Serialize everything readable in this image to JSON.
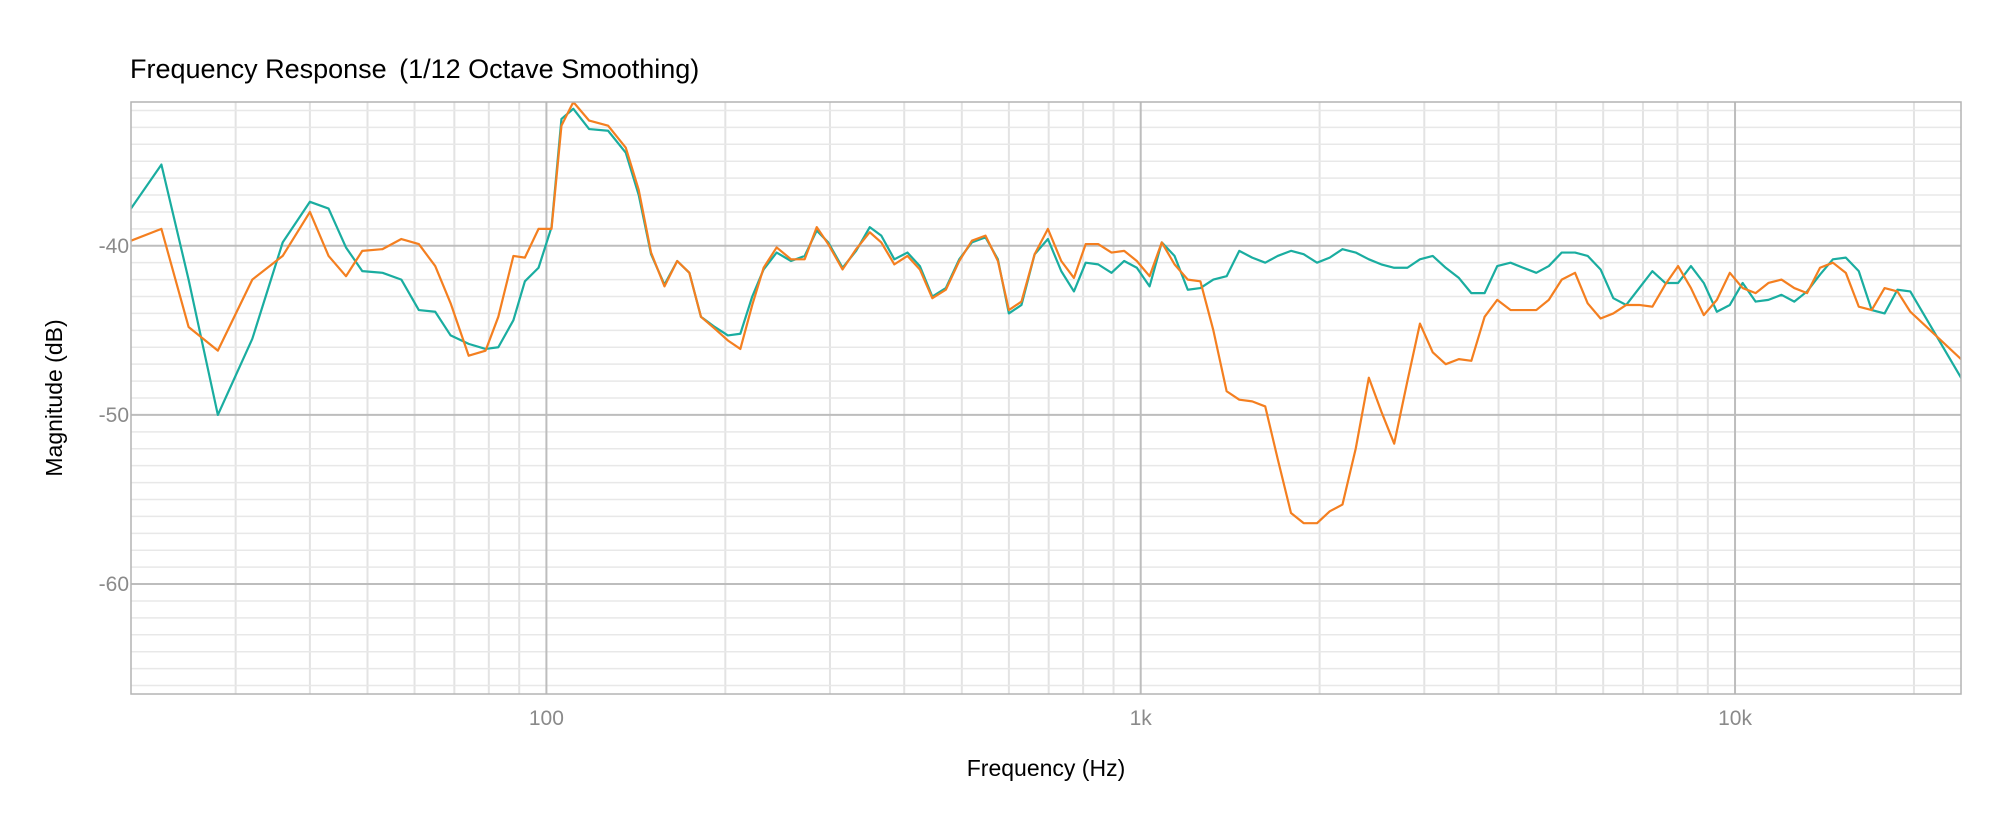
{
  "chart_data": {
    "type": "line",
    "title": "Frequency Response",
    "subtitle": "(1/12 Octave Smoothing)",
    "xlabel": "Frequency (Hz)",
    "ylabel": "Magnitude (dB)",
    "x_scale": "log",
    "xlim": [
      20,
      24000
    ],
    "ylim": [
      -66.5,
      -31.5
    ],
    "x_ticks": [
      {
        "value": 100,
        "label": "100"
      },
      {
        "value": 1000,
        "label": "1k"
      },
      {
        "value": 10000,
        "label": "10k"
      }
    ],
    "y_ticks": [
      {
        "value": -40,
        "label": "-40"
      },
      {
        "value": -50,
        "label": "-50"
      },
      {
        "value": -60,
        "label": "-60"
      }
    ],
    "grid": true,
    "legend": "none",
    "series": [
      {
        "color": "#1aada0",
        "points": [
          [
            20,
            -37.8
          ],
          [
            22.5,
            -35.2
          ],
          [
            25,
            -42.0
          ],
          [
            28,
            -50.0
          ],
          [
            32,
            -45.5
          ],
          [
            36,
            -39.8
          ],
          [
            40,
            -37.4
          ],
          [
            43,
            -37.8
          ],
          [
            46,
            -40.1
          ],
          [
            49,
            -41.5
          ],
          [
            53,
            -41.6
          ],
          [
            57,
            -42.0
          ],
          [
            61,
            -43.8
          ],
          [
            65,
            -43.9
          ],
          [
            69,
            -45.3
          ],
          [
            74,
            -45.8
          ],
          [
            79,
            -46.1
          ],
          [
            83,
            -46.0
          ],
          [
            88,
            -44.4
          ],
          [
            92,
            -42.1
          ],
          [
            97,
            -41.3
          ],
          [
            102,
            -38.9
          ],
          [
            106,
            -32.5
          ],
          [
            111,
            -31.9
          ],
          [
            118,
            -33.1
          ],
          [
            127,
            -33.2
          ],
          [
            136,
            -34.5
          ],
          [
            143,
            -37.0
          ],
          [
            150,
            -40.5
          ],
          [
            158,
            -42.3
          ],
          [
            166,
            -40.9
          ],
          [
            174,
            -41.6
          ],
          [
            182,
            -44.2
          ],
          [
            192,
            -44.8
          ],
          [
            202,
            -45.3
          ],
          [
            212,
            -45.2
          ],
          [
            222,
            -43.0
          ],
          [
            232,
            -41.4
          ],
          [
            244,
            -40.4
          ],
          [
            258,
            -40.9
          ],
          [
            272,
            -40.6
          ],
          [
            285,
            -39.1
          ],
          [
            298,
            -39.8
          ],
          [
            315,
            -41.3
          ],
          [
            332,
            -40.3
          ],
          [
            350,
            -38.9
          ],
          [
            366,
            -39.4
          ],
          [
            385,
            -40.8
          ],
          [
            405,
            -40.4
          ],
          [
            425,
            -41.2
          ],
          [
            446,
            -43.0
          ],
          [
            470,
            -42.5
          ],
          [
            495,
            -40.8
          ],
          [
            520,
            -39.8
          ],
          [
            548,
            -39.5
          ],
          [
            575,
            -40.8
          ],
          [
            600,
            -44.0
          ],
          [
            630,
            -43.5
          ],
          [
            663,
            -40.5
          ],
          [
            698,
            -39.6
          ],
          [
            735,
            -41.5
          ],
          [
            772,
            -42.7
          ],
          [
            808,
            -41.0
          ],
          [
            848,
            -41.1
          ],
          [
            893,
            -41.6
          ],
          [
            938,
            -40.9
          ],
          [
            985,
            -41.3
          ],
          [
            1035,
            -42.4
          ],
          [
            1085,
            -39.8
          ],
          [
            1140,
            -40.6
          ],
          [
            1200,
            -42.6
          ],
          [
            1260,
            -42.5
          ],
          [
            1325,
            -42.0
          ],
          [
            1395,
            -41.8
          ],
          [
            1465,
            -40.3
          ],
          [
            1540,
            -40.7
          ],
          [
            1620,
            -41.0
          ],
          [
            1700,
            -40.6
          ],
          [
            1790,
            -40.3
          ],
          [
            1880,
            -40.5
          ],
          [
            1980,
            -41.0
          ],
          [
            2080,
            -40.7
          ],
          [
            2185,
            -40.2
          ],
          [
            2300,
            -40.4
          ],
          [
            2420,
            -40.8
          ],
          [
            2540,
            -41.1
          ],
          [
            2670,
            -41.3
          ],
          [
            2810,
            -41.3
          ],
          [
            2950,
            -40.8
          ],
          [
            3100,
            -40.6
          ],
          [
            3260,
            -41.3
          ],
          [
            3430,
            -41.9
          ],
          [
            3600,
            -42.8
          ],
          [
            3790,
            -42.8
          ],
          [
            3980,
            -41.2
          ],
          [
            4190,
            -41.0
          ],
          [
            4400,
            -41.3
          ],
          [
            4630,
            -41.6
          ],
          [
            4860,
            -41.2
          ],
          [
            5110,
            -40.4
          ],
          [
            5380,
            -40.4
          ],
          [
            5650,
            -40.6
          ],
          [
            5940,
            -41.4
          ],
          [
            6240,
            -43.1
          ],
          [
            6560,
            -43.5
          ],
          [
            6900,
            -42.5
          ],
          [
            7260,
            -41.5
          ],
          [
            7630,
            -42.2
          ],
          [
            8020,
            -42.2
          ],
          [
            8430,
            -41.2
          ],
          [
            8860,
            -42.2
          ],
          [
            9320,
            -43.9
          ],
          [
            9800,
            -43.5
          ],
          [
            10300,
            -42.2
          ],
          [
            10830,
            -43.3
          ],
          [
            11380,
            -43.2
          ],
          [
            11970,
            -42.9
          ],
          [
            12580,
            -43.3
          ],
          [
            13220,
            -42.7
          ],
          [
            13900,
            -41.7
          ],
          [
            14610,
            -40.8
          ],
          [
            15360,
            -40.7
          ],
          [
            16150,
            -41.5
          ],
          [
            16980,
            -43.8
          ],
          [
            17850,
            -44.0
          ],
          [
            18760,
            -42.6
          ],
          [
            19720,
            -42.7
          ],
          [
            24000,
            -47.8
          ]
        ]
      },
      {
        "color": "#f47f20",
        "points": [
          [
            20,
            -39.7
          ],
          [
            22.5,
            -39.0
          ],
          [
            25,
            -44.8
          ],
          [
            28,
            -46.2
          ],
          [
            32,
            -42.0
          ],
          [
            36,
            -40.6
          ],
          [
            40,
            -38.0
          ],
          [
            43,
            -40.6
          ],
          [
            46,
            -41.8
          ],
          [
            49,
            -40.3
          ],
          [
            53,
            -40.2
          ],
          [
            57,
            -39.6
          ],
          [
            61,
            -39.9
          ],
          [
            65,
            -41.2
          ],
          [
            69,
            -43.4
          ],
          [
            74,
            -46.5
          ],
          [
            79,
            -46.2
          ],
          [
            83,
            -44.2
          ],
          [
            88,
            -40.6
          ],
          [
            92,
            -40.7
          ],
          [
            97,
            -39.0
          ],
          [
            102,
            -39.0
          ],
          [
            106,
            -32.9
          ],
          [
            111,
            -31.5
          ],
          [
            118,
            -32.6
          ],
          [
            127,
            -32.9
          ],
          [
            136,
            -34.2
          ],
          [
            143,
            -36.7
          ],
          [
            150,
            -40.4
          ],
          [
            158,
            -42.4
          ],
          [
            166,
            -40.9
          ],
          [
            174,
            -41.6
          ],
          [
            182,
            -44.2
          ],
          [
            192,
            -44.9
          ],
          [
            202,
            -45.6
          ],
          [
            212,
            -46.1
          ],
          [
            222,
            -43.5
          ],
          [
            232,
            -41.3
          ],
          [
            244,
            -40.1
          ],
          [
            258,
            -40.8
          ],
          [
            272,
            -40.8
          ],
          [
            285,
            -38.9
          ],
          [
            298,
            -39.9
          ],
          [
            315,
            -41.4
          ],
          [
            332,
            -40.2
          ],
          [
            350,
            -39.2
          ],
          [
            366,
            -39.8
          ],
          [
            385,
            -41.1
          ],
          [
            405,
            -40.6
          ],
          [
            425,
            -41.4
          ],
          [
            446,
            -43.1
          ],
          [
            470,
            -42.6
          ],
          [
            495,
            -40.9
          ],
          [
            520,
            -39.7
          ],
          [
            548,
            -39.4
          ],
          [
            575,
            -40.9
          ],
          [
            600,
            -43.8
          ],
          [
            630,
            -43.3
          ],
          [
            663,
            -40.5
          ],
          [
            698,
            -39.0
          ],
          [
            735,
            -40.9
          ],
          [
            772,
            -41.9
          ],
          [
            808,
            -39.9
          ],
          [
            848,
            -39.9
          ],
          [
            893,
            -40.4
          ],
          [
            938,
            -40.3
          ],
          [
            985,
            -40.9
          ],
          [
            1035,
            -41.8
          ],
          [
            1085,
            -39.8
          ],
          [
            1140,
            -41.1
          ],
          [
            1200,
            -42.0
          ],
          [
            1260,
            -42.1
          ],
          [
            1325,
            -45.0
          ],
          [
            1395,
            -48.6
          ],
          [
            1465,
            -49.1
          ],
          [
            1540,
            -49.2
          ],
          [
            1620,
            -49.5
          ],
          [
            1700,
            -52.6
          ],
          [
            1790,
            -55.8
          ],
          [
            1880,
            -56.4
          ],
          [
            1980,
            -56.4
          ],
          [
            2080,
            -55.7
          ],
          [
            2185,
            -55.3
          ],
          [
            2300,
            -52.0
          ],
          [
            2420,
            -47.8
          ],
          [
            2540,
            -49.8
          ],
          [
            2670,
            -51.7
          ],
          [
            2810,
            -48.0
          ],
          [
            2950,
            -44.6
          ],
          [
            3100,
            -46.3
          ],
          [
            3260,
            -47.0
          ],
          [
            3430,
            -46.7
          ],
          [
            3600,
            -46.8
          ],
          [
            3790,
            -44.2
          ],
          [
            3980,
            -43.2
          ],
          [
            4190,
            -43.8
          ],
          [
            4400,
            -43.8
          ],
          [
            4630,
            -43.8
          ],
          [
            4860,
            -43.2
          ],
          [
            5110,
            -42.0
          ],
          [
            5380,
            -41.6
          ],
          [
            5650,
            -43.4
          ],
          [
            5940,
            -44.3
          ],
          [
            6240,
            -44.0
          ],
          [
            6560,
            -43.5
          ],
          [
            6900,
            -43.5
          ],
          [
            7260,
            -43.6
          ],
          [
            7630,
            -42.3
          ],
          [
            8020,
            -41.2
          ],
          [
            8430,
            -42.5
          ],
          [
            8860,
            -44.1
          ],
          [
            9320,
            -43.2
          ],
          [
            9800,
            -41.6
          ],
          [
            10300,
            -42.5
          ],
          [
            10830,
            -42.8
          ],
          [
            11380,
            -42.2
          ],
          [
            11970,
            -42.0
          ],
          [
            12580,
            -42.5
          ],
          [
            13220,
            -42.8
          ],
          [
            13900,
            -41.3
          ],
          [
            14610,
            -41.0
          ],
          [
            15360,
            -41.6
          ],
          [
            16150,
            -43.6
          ],
          [
            16980,
            -43.8
          ],
          [
            17850,
            -42.5
          ],
          [
            18760,
            -42.7
          ],
          [
            19720,
            -43.9
          ],
          [
            24000,
            -46.7
          ]
        ]
      }
    ]
  }
}
